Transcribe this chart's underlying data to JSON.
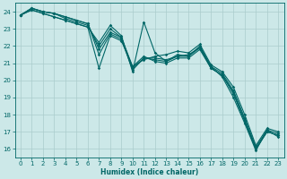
{
  "xlabel": "Humidex (Indice chaleur)",
  "background_color": "#cce8e8",
  "grid_color": "#aacccc",
  "line_color": "#006666",
  "xlim": [
    -0.5,
    23.5
  ],
  "ylim": [
    15.5,
    24.5
  ],
  "yticks": [
    16,
    17,
    18,
    19,
    20,
    21,
    22,
    23,
    24
  ],
  "xticks": [
    0,
    1,
    2,
    3,
    4,
    5,
    6,
    7,
    8,
    9,
    10,
    11,
    12,
    13,
    14,
    15,
    16,
    17,
    18,
    19,
    20,
    21,
    22,
    23
  ],
  "series": [
    [
      23.8,
      24.2,
      24.0,
      23.9,
      23.7,
      23.5,
      23.3,
      21.8,
      22.8,
      22.5,
      20.8,
      21.4,
      21.1,
      21.0,
      21.3,
      21.3,
      21.8,
      20.7,
      20.3,
      19.3,
      17.7,
      16.0,
      17.0,
      16.8
    ],
    [
      23.8,
      24.1,
      23.9,
      23.7,
      23.5,
      23.3,
      23.1,
      22.2,
      23.2,
      22.6,
      20.5,
      23.4,
      21.6,
      21.1,
      21.5,
      21.4,
      22.0,
      20.8,
      20.2,
      19.0,
      17.5,
      15.9,
      17.1,
      16.7
    ],
    [
      23.8,
      24.1,
      23.9,
      23.7,
      23.5,
      23.3,
      23.1,
      20.7,
      22.6,
      22.3,
      20.8,
      21.2,
      21.4,
      21.5,
      21.7,
      21.6,
      22.1,
      20.9,
      20.5,
      19.6,
      18.0,
      16.2,
      17.2,
      17.0
    ],
    [
      23.8,
      24.2,
      24.0,
      23.9,
      23.6,
      23.4,
      23.2,
      22.0,
      23.0,
      22.5,
      20.7,
      21.3,
      21.3,
      21.2,
      21.4,
      21.5,
      21.9,
      20.8,
      20.4,
      19.4,
      17.8,
      16.1,
      17.1,
      16.9
    ],
    [
      23.8,
      24.2,
      24.0,
      23.9,
      23.7,
      23.5,
      23.3,
      21.5,
      22.7,
      22.4,
      20.6,
      21.3,
      21.2,
      21.1,
      21.4,
      21.4,
      21.9,
      20.7,
      20.3,
      19.2,
      17.6,
      16.0,
      17.0,
      16.8
    ]
  ]
}
